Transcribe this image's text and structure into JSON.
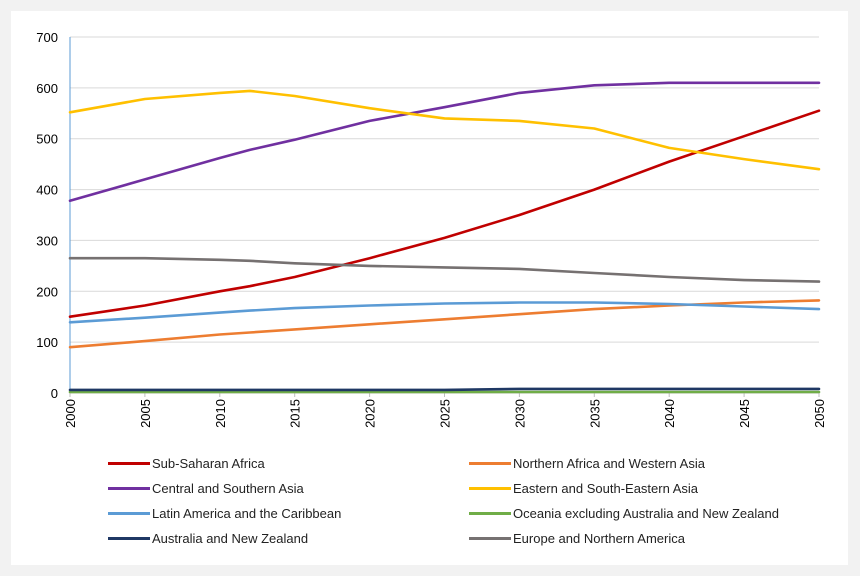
{
  "chart_data": {
    "type": "line",
    "title": "",
    "xlabel": "",
    "ylabel": "",
    "ylim": [
      0,
      700
    ],
    "yticks": [
      0,
      100,
      200,
      300,
      400,
      500,
      600,
      700
    ],
    "xticks": [
      2000,
      2005,
      2010,
      2015,
      2020,
      2025,
      2030,
      2035,
      2040,
      2045,
      2050
    ],
    "xlim": [
      2000,
      2050
    ],
    "grid": true,
    "legend_position": "bottom",
    "x": [
      2000,
      2005,
      2010,
      2012,
      2015,
      2020,
      2025,
      2030,
      2035,
      2040,
      2045,
      2050
    ],
    "series": [
      {
        "name": "Sub-Saharan Africa",
        "color": "#c00000",
        "values": [
          150,
          172,
          200,
          210,
          228,
          265,
          305,
          350,
          400,
          455,
          505,
          555
        ]
      },
      {
        "name": "Northern Africa and Western Asia",
        "color": "#ed7d31",
        "values": [
          90,
          102,
          115,
          119,
          125,
          135,
          145,
          155,
          165,
          172,
          178,
          182
        ]
      },
      {
        "name": "Central and Southern Asia",
        "color": "#7030a0",
        "values": [
          378,
          420,
          462,
          478,
          498,
          535,
          562,
          590,
          605,
          610,
          610,
          610
        ]
      },
      {
        "name": "Eastern and South-Eastern Asia",
        "color": "#ffc000",
        "values": [
          552,
          578,
          590,
          594,
          584,
          560,
          540,
          535,
          520,
          482,
          460,
          440
        ]
      },
      {
        "name": "Latin America and the Caribbean",
        "color": "#5b9bd5",
        "values": [
          139,
          148,
          158,
          162,
          167,
          172,
          176,
          178,
          178,
          175,
          170,
          165
        ]
      },
      {
        "name": "Oceania excluding Australia and New Zealand",
        "color": "#70ad47",
        "values": [
          2,
          2,
          2,
          2,
          2,
          2,
          2,
          2,
          2,
          2,
          2,
          2
        ]
      },
      {
        "name": "Australia and New Zealand",
        "color": "#1f3864",
        "values": [
          6,
          6,
          6,
          6,
          6,
          6,
          6,
          8,
          8,
          8,
          8,
          8
        ]
      },
      {
        "name": "Europe and Northern America",
        "color": "#767171",
        "values": [
          265,
          265,
          262,
          260,
          255,
          250,
          247,
          244,
          236,
          228,
          222,
          219
        ]
      }
    ]
  }
}
